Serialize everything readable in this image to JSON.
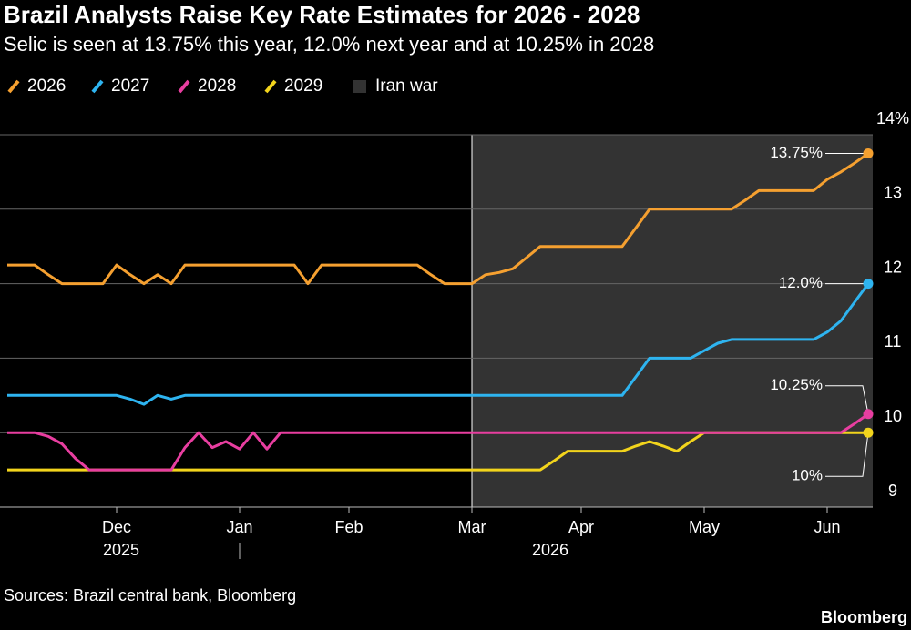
{
  "chart_data": {
    "type": "line",
    "title": "Brazil Analysts Raise Key Rate Estimates for 2026 - 2028",
    "subtitle": "Selic is seen at 13.75% this year, 12.0% next year and at 10.25% in 2028",
    "source": "Sources: Brazil central bank, Bloomberg",
    "brand": "Bloomberg",
    "categories": [
      null,
      null,
      null,
      null,
      null,
      null,
      null,
      null,
      "Dec",
      null,
      null,
      null,
      null,
      null,
      null,
      null,
      null,
      "Jan",
      null,
      null,
      null,
      null,
      null,
      null,
      null,
      "Feb",
      null,
      null,
      null,
      null,
      null,
      null,
      null,
      null,
      "Mar",
      null,
      null,
      null,
      null,
      null,
      null,
      null,
      "Apr",
      null,
      null,
      null,
      null,
      null,
      null,
      null,
      null,
      "May",
      null,
      null,
      null,
      null,
      null,
      null,
      null,
      null,
      "Jun",
      null,
      null,
      null
    ],
    "year_labels": [
      "2025",
      "2026"
    ],
    "shaded_region": {
      "name": "Iran war",
      "start": "Mar",
      "color": "#333333"
    },
    "series": [
      {
        "name": "2026",
        "color": "#f5a030",
        "end_label": "13.75%",
        "values": [
          12.25,
          12.25,
          12.25,
          12.12,
          12.0,
          12.0,
          12.0,
          12.0,
          12.25,
          12.12,
          12.0,
          12.12,
          12.0,
          12.25,
          12.25,
          12.25,
          12.25,
          12.25,
          12.25,
          12.25,
          12.25,
          12.25,
          12.0,
          12.25,
          12.25,
          12.25,
          12.25,
          12.25,
          12.25,
          12.25,
          12.25,
          12.12,
          12.0,
          12.0,
          12.0,
          12.12,
          12.15,
          12.2,
          12.35,
          12.5,
          12.5,
          12.5,
          12.5,
          12.5,
          12.5,
          12.5,
          12.75,
          13.0,
          13.0,
          13.0,
          13.0,
          13.0,
          13.0,
          13.0,
          13.12,
          13.25,
          13.25,
          13.25,
          13.25,
          13.25,
          13.4,
          13.5,
          13.62,
          13.75
        ]
      },
      {
        "name": "2027",
        "color": "#2eb4f0",
        "end_label": "12.0%",
        "values": [
          10.5,
          10.5,
          10.5,
          10.5,
          10.5,
          10.5,
          10.5,
          10.5,
          10.5,
          10.45,
          10.38,
          10.5,
          10.45,
          10.5,
          10.5,
          10.5,
          10.5,
          10.5,
          10.5,
          10.5,
          10.5,
          10.5,
          10.5,
          10.5,
          10.5,
          10.5,
          10.5,
          10.5,
          10.5,
          10.5,
          10.5,
          10.5,
          10.5,
          10.5,
          10.5,
          10.5,
          10.5,
          10.5,
          10.5,
          10.5,
          10.5,
          10.5,
          10.5,
          10.5,
          10.5,
          10.5,
          10.75,
          11.0,
          11.0,
          11.0,
          11.0,
          11.1,
          11.2,
          11.25,
          11.25,
          11.25,
          11.25,
          11.25,
          11.25,
          11.25,
          11.35,
          11.5,
          11.75,
          12.0
        ]
      },
      {
        "name": "2028",
        "color": "#e83ea0",
        "end_label": "10.25%",
        "values": [
          10.0,
          10.0,
          10.0,
          9.95,
          9.85,
          9.65,
          9.5,
          9.5,
          9.5,
          9.5,
          9.5,
          9.5,
          9.5,
          9.8,
          10.0,
          9.8,
          9.88,
          9.78,
          10.0,
          9.78,
          10.0,
          10.0,
          10.0,
          10.0,
          10.0,
          10.0,
          10.0,
          10.0,
          10.0,
          10.0,
          10.0,
          10.0,
          10.0,
          10.0,
          10.0,
          10.0,
          10.0,
          10.0,
          10.0,
          10.0,
          10.0,
          10.0,
          10.0,
          10.0,
          10.0,
          10.0,
          10.0,
          10.0,
          10.0,
          10.0,
          10.0,
          10.0,
          10.0,
          10.0,
          10.0,
          10.0,
          10.0,
          10.0,
          10.0,
          10.0,
          10.0,
          10.0,
          10.12,
          10.25
        ]
      },
      {
        "name": "2029",
        "color": "#f2d41c",
        "end_label": "10%",
        "values": [
          9.5,
          9.5,
          9.5,
          9.5,
          9.5,
          9.5,
          9.5,
          9.5,
          9.5,
          9.5,
          9.5,
          9.5,
          9.5,
          9.5,
          9.5,
          9.5,
          9.5,
          9.5,
          9.5,
          9.5,
          9.5,
          9.5,
          9.5,
          9.5,
          9.5,
          9.5,
          9.5,
          9.5,
          9.5,
          9.5,
          9.5,
          9.5,
          9.5,
          9.5,
          9.5,
          9.5,
          9.5,
          9.5,
          9.5,
          9.5,
          9.62,
          9.75,
          9.75,
          9.75,
          9.75,
          9.75,
          9.82,
          9.88,
          9.82,
          9.75,
          9.88,
          10.0,
          10.0,
          10.0,
          10.0,
          10.0,
          10.0,
          10.0,
          10.0,
          10.0,
          10.0,
          10.0,
          10.0,
          10.0
        ]
      }
    ],
    "ylim": [
      9,
      14
    ],
    "yticks": [
      9,
      10,
      11,
      12,
      13,
      {
        "value": 14,
        "label": "14%"
      }
    ],
    "grid": true
  }
}
